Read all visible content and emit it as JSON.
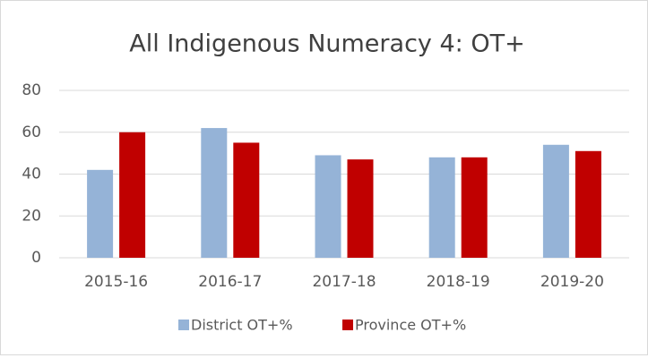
{
  "chart_data": {
    "type": "bar",
    "title": "All Indigenous Numeracy 4: OT+",
    "categories": [
      "2015-16",
      "2016-17",
      "2017-18",
      "2018-19",
      "2019-20"
    ],
    "series": [
      {
        "name": "District OT+%",
        "color": "#95b3d7",
        "values": [
          42,
          62,
          49,
          48,
          54
        ]
      },
      {
        "name": "Province OT+%",
        "color": "#c00000",
        "values": [
          60,
          55,
          47,
          48,
          51
        ]
      }
    ],
    "ylim": [
      0,
      80
    ],
    "yticks": [
      0,
      20,
      40,
      60,
      80
    ],
    "grid": true,
    "legend": "bottom"
  }
}
